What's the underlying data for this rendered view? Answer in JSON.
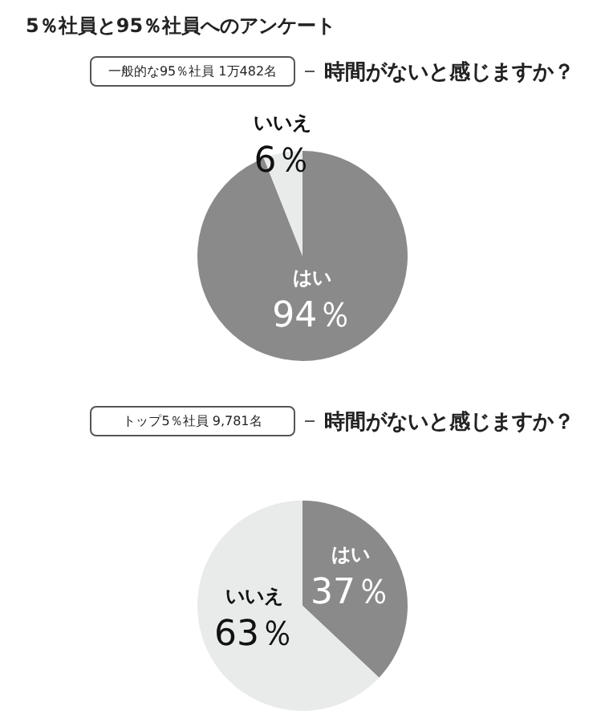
{
  "chart_data": [
    {
      "type": "pie",
      "title": "時間がないと感じますか？",
      "subtitle": "一般的な95％社員 1万482名",
      "annotations": [
        "5％社員と95％社員へのアンケート"
      ],
      "categories": [
        "はい",
        "いいえ"
      ],
      "values": [
        94,
        6
      ],
      "colors": [
        "#8a8a8a",
        "#e9eaea"
      ],
      "value_labels": [
        "94％",
        "6％"
      ],
      "legend": false
    },
    {
      "type": "pie",
      "title": "時間がないと感じますか？",
      "subtitle": "トップ5％社員 9,781名",
      "categories": [
        "はい",
        "いいえ"
      ],
      "values": [
        37,
        63
      ],
      "colors": [
        "#8a8a8a",
        "#e9eaea"
      ],
      "value_labels": [
        "37％",
        "63％"
      ],
      "legend": false
    }
  ]
}
